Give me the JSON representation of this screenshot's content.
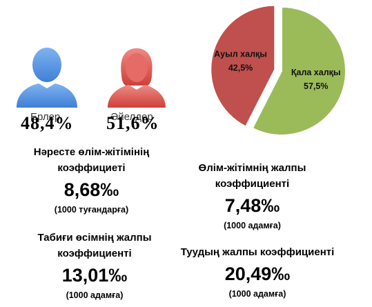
{
  "colors": {
    "male": "#4a8fe0",
    "female": "#d9534f",
    "rural": "#c0504d",
    "urban": "#9bbb59"
  },
  "gender": {
    "male": {
      "icon": "man-silhouette-icon",
      "label": "Ерлер",
      "percent": "48,4%"
    },
    "female": {
      "icon": "woman-silhouette-icon",
      "label": "Әйелдер",
      "percent": "51,6%"
    }
  },
  "chart_data": {
    "type": "pie",
    "slices": [
      {
        "label": "Ауыл халқы",
        "value": 42.5,
        "value_label": "42,5%",
        "color": "#c0504d",
        "exploded": true
      },
      {
        "label": "Қала халқы",
        "value": 57.5,
        "value_label": "57,5%",
        "color": "#9bbb59",
        "exploded": false
      }
    ]
  },
  "stats": {
    "infant_mortality": {
      "title_line1": "Нәресте өлім-жітімінің",
      "title_line2": "коэффициеті",
      "value": "8,68‰",
      "unit": "(1000 туғандарға)"
    },
    "general_mortality": {
      "title_line1": "Өлім-жітімнің жалпы",
      "title_line2": "коэффициенті",
      "value": "7,48‰",
      "unit": "(1000 адамға)"
    },
    "natural_growth": {
      "title_line1": "Табиғи өсімнің жалпы",
      "title_line2": "коэффициенті",
      "value": "13,01‰",
      "unit": "(1000 адамға)"
    },
    "birth_rate": {
      "title_line1": "Туудың жалпы коэффициенті",
      "value": "20,49‰",
      "unit": "(1000 адамға)"
    }
  }
}
